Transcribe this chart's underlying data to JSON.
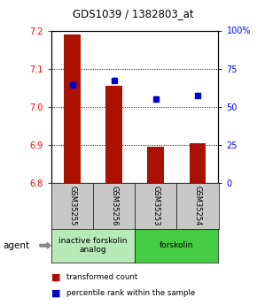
{
  "title": "GDS1039 / 1382803_at",
  "samples": [
    "GSM35255",
    "GSM35256",
    "GSM35253",
    "GSM35254"
  ],
  "red_values": [
    7.19,
    7.055,
    6.895,
    6.905
  ],
  "blue_values": [
    7.058,
    7.068,
    7.02,
    7.03
  ],
  "ylim_left": [
    6.8,
    7.2
  ],
  "ylim_right": [
    0,
    100
  ],
  "yticks_left": [
    6.8,
    6.9,
    7.0,
    7.1,
    7.2
  ],
  "yticks_right": [
    0,
    25,
    50,
    75,
    100
  ],
  "ytick_labels_right": [
    "0",
    "25",
    "50",
    "75",
    "100%"
  ],
  "groups": [
    {
      "label": "inactive forskolin\nanalog",
      "color": "#b8eab8",
      "n": 2
    },
    {
      "label": "forskolin",
      "color": "#44cc44",
      "n": 2
    }
  ],
  "bar_color": "#aa1100",
  "dot_color": "#0000cc",
  "label_bg": "#c8c8c8"
}
